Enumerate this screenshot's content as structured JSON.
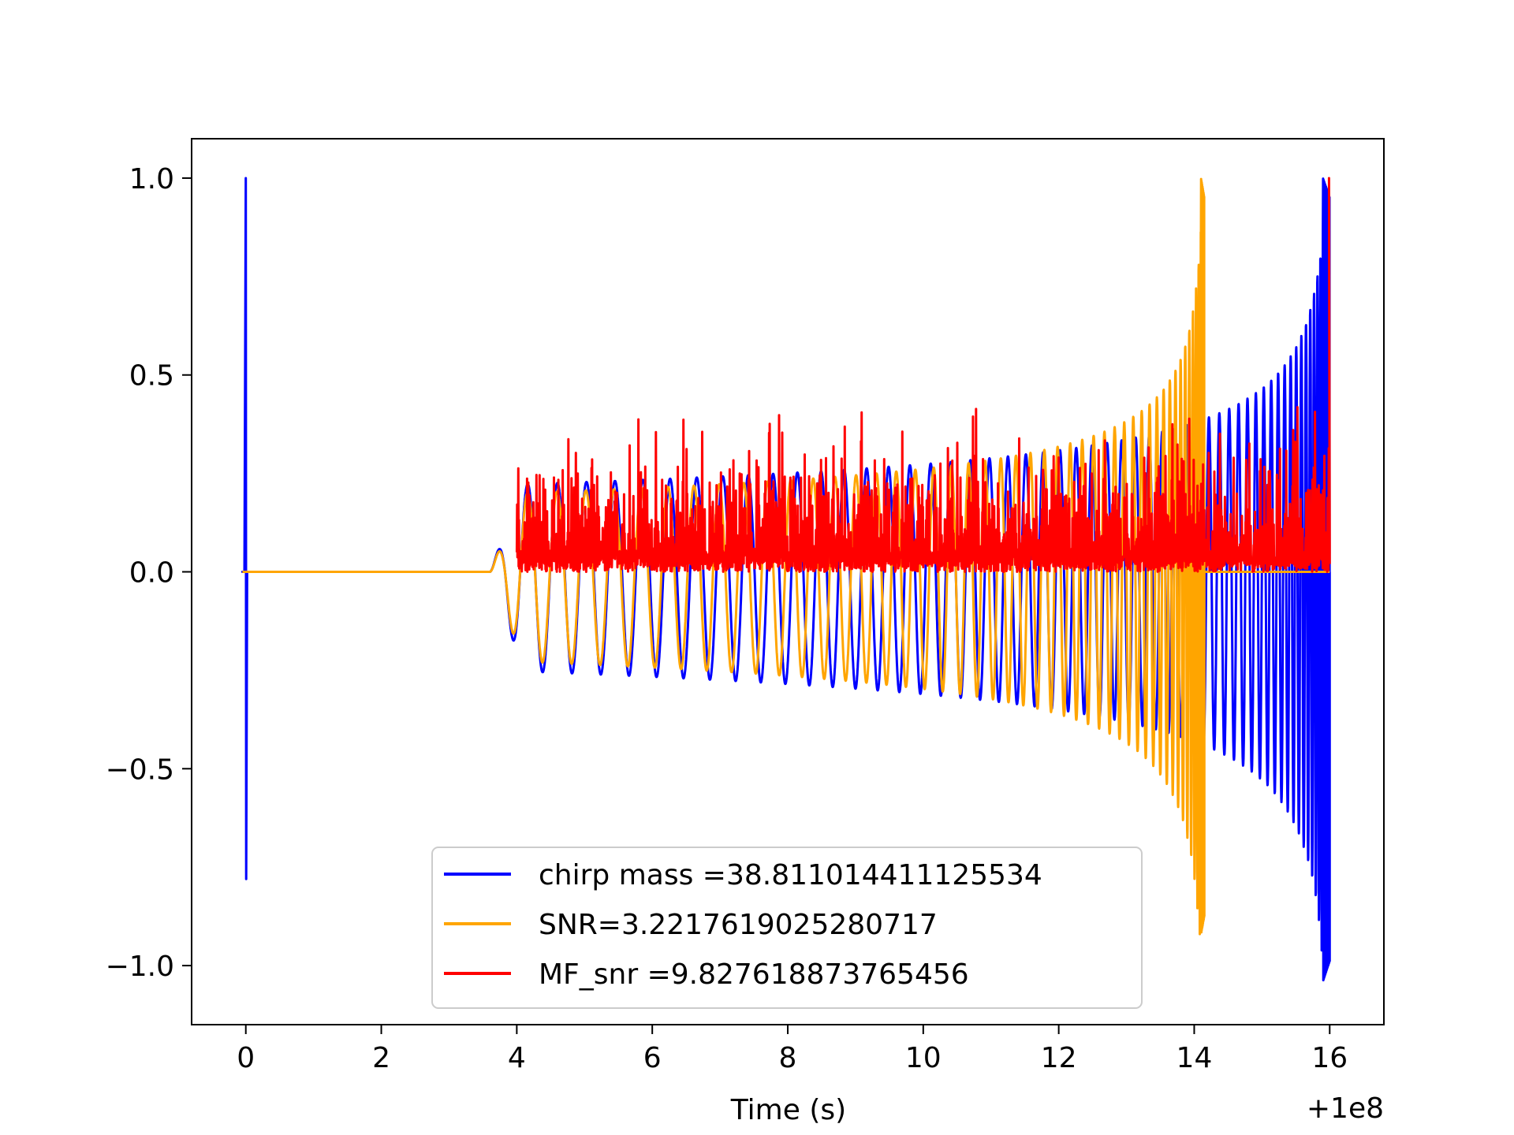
{
  "chart_data": {
    "type": "line",
    "title": "",
    "xlabel": "Time (s)",
    "ylabel": "",
    "x_offset_label": "+1e8",
    "xlim": [
      -0.8,
      16.8
    ],
    "ylim": [
      -1.15,
      1.1
    ],
    "x_ticks": [
      0,
      2,
      4,
      6,
      8,
      10,
      12,
      14,
      16
    ],
    "x_tick_labels": [
      "0",
      "2",
      "4",
      "6",
      "8",
      "10",
      "12",
      "14",
      "16"
    ],
    "y_ticks": [
      1.0,
      0.5,
      0.0,
      -0.5,
      -1.0
    ],
    "y_tick_labels": [
      "1.0",
      "0.5",
      "0.0",
      "−0.5",
      "−1.0"
    ],
    "grid": false,
    "legend_position": "lower-center",
    "series": [
      {
        "name": "chirp mass =38.811014411125534",
        "color": "#0000ff",
        "start_spike": {
          "x": 0.0,
          "max": 1.0,
          "min": -0.78
        },
        "chirp": {
          "x_start": 3.6,
          "x_end": 16.0,
          "x_peak": 15.9,
          "max": 1.0,
          "min": -1.04,
          "early_amplitude": 0.2
        }
      },
      {
        "name": "SNR=3.2217619025280717",
        "color": "#ffa500",
        "chirp": {
          "x_start": 3.6,
          "x_end": 14.15,
          "x_peak": 14.1,
          "max": 1.0,
          "min": -0.92,
          "early_amplitude": 0.18
        },
        "flat_after": 16.0
      },
      {
        "name": "MF_snr =9.827618873765456",
        "color": "#ff0000",
        "noise": {
          "x_start": 4.0,
          "x_end": 16.0,
          "typical_max": 0.3,
          "peak_max": 0.42,
          "min": 0.0
        },
        "end_spike": {
          "x": 16.0,
          "max": 1.0
        }
      }
    ]
  }
}
